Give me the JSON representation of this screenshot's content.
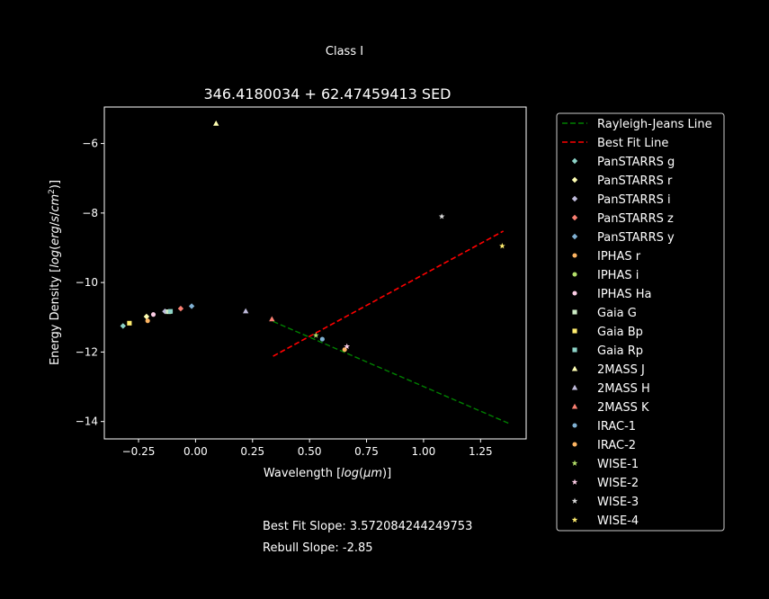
{
  "figure": {
    "suptitle": "Class I",
    "best_fit_text": "Best Fit Slope: 3.572084244249753",
    "rebull_text": "Rebull Slope: -2.85"
  },
  "chart_data": {
    "type": "scatter",
    "title": "346.4180034 + 62.47459413 SED",
    "xlabel": "Wavelength [log(μm)]",
    "ylabel": "Energy Density [log(erg/s/cm²)]",
    "xlim": [
      -0.4,
      1.45
    ],
    "ylim": [
      -14.5,
      -4.95
    ],
    "xticks": [
      -0.25,
      0.0,
      0.25,
      0.5,
      0.75,
      1.0,
      1.25
    ],
    "xtick_labels": [
      "−0.25",
      "0.00",
      "0.25",
      "0.50",
      "0.75",
      "1.00",
      "1.25"
    ],
    "yticks": [
      -6,
      -8,
      -10,
      -12,
      -14
    ],
    "ytick_labels": [
      "−6",
      "−8",
      "−10",
      "−12",
      "−14"
    ],
    "grid": false,
    "legend_position": "outside-right",
    "lines": [
      {
        "name": "Rayleigh-Jeans Line",
        "color": "#008000",
        "style": "dashed",
        "x": [
          0.34,
          1.38
        ],
        "y": [
          -11.12,
          -14.07
        ]
      },
      {
        "name": "Best Fit Line",
        "color": "#ff0000",
        "style": "dashed",
        "x": [
          0.34,
          1.35
        ],
        "y": [
          -12.12,
          -8.52
        ]
      }
    ],
    "series": [
      {
        "name": "PanSTARRS g",
        "marker": "diamond",
        "color": "#8dd3c7",
        "x": [
          -0.318
        ],
        "y": [
          -11.25
        ]
      },
      {
        "name": "PanSTARRS r",
        "marker": "diamond",
        "color": "#ffffb3",
        "x": [
          -0.215
        ],
        "y": [
          -10.98
        ]
      },
      {
        "name": "PanSTARRS i",
        "marker": "diamond",
        "color": "#bebada",
        "x": [
          -0.134
        ],
        "y": [
          -10.83
        ]
      },
      {
        "name": "PanSTARRS z",
        "marker": "diamond",
        "color": "#fb8072",
        "x": [
          -0.065
        ],
        "y": [
          -10.75
        ]
      },
      {
        "name": "PanSTARRS y",
        "marker": "diamond",
        "color": "#80b1d3",
        "x": [
          -0.017
        ],
        "y": [
          -10.68
        ]
      },
      {
        "name": "IPHAS r",
        "marker": "circle",
        "color": "#fdb462",
        "x": [
          -0.21
        ],
        "y": [
          -11.1
        ]
      },
      {
        "name": "IPHAS i",
        "marker": "circle",
        "color": "#b3de69",
        "x": [
          -0.11
        ],
        "y": [
          -10.84
        ]
      },
      {
        "name": "IPHAS Ha",
        "marker": "circle",
        "color": "#fccde5",
        "x": [
          -0.185
        ],
        "y": [
          -10.92
        ]
      },
      {
        "name": "Gaia G",
        "marker": "square",
        "color": "#ccebc5",
        "x": [
          -0.12
        ],
        "y": [
          -10.84
        ]
      },
      {
        "name": "Gaia Bp",
        "marker": "square",
        "color": "#ffed6f",
        "x": [
          -0.29
        ],
        "y": [
          -11.17
        ]
      },
      {
        "name": "Gaia Rp",
        "marker": "square",
        "color": "#8dd3c7",
        "x": [
          -0.11
        ],
        "y": [
          -10.83
        ]
      },
      {
        "name": "2MASS J",
        "marker": "triangle",
        "color": "#ffffb3",
        "x": [
          0.09
        ],
        "y": [
          -5.42
        ]
      },
      {
        "name": "2MASS H",
        "marker": "triangle",
        "color": "#bebada",
        "x": [
          0.22
        ],
        "y": [
          -10.82
        ]
      },
      {
        "name": "2MASS K",
        "marker": "triangle",
        "color": "#fb8072",
        "x": [
          0.335
        ],
        "y": [
          -11.05
        ]
      },
      {
        "name": "IRAC-1",
        "marker": "circle",
        "color": "#80b1d3",
        "x": [
          0.556
        ],
        "y": [
          -11.63
        ]
      },
      {
        "name": "IRAC-2",
        "marker": "circle",
        "color": "#fdb462",
        "x": [
          0.654
        ],
        "y": [
          -11.93
        ]
      },
      {
        "name": "WISE-1",
        "marker": "star",
        "color": "#b3de69",
        "x": [
          0.528
        ],
        "y": [
          -11.52
        ]
      },
      {
        "name": "WISE-2",
        "marker": "star",
        "color": "#fccde5",
        "x": [
          0.664
        ],
        "y": [
          -11.84
        ]
      },
      {
        "name": "WISE-3",
        "marker": "star",
        "color": "#d9d9d9",
        "x": [
          1.08
        ],
        "y": [
          -8.1
        ]
      },
      {
        "name": "WISE-4",
        "marker": "star",
        "color": "#ffed6f",
        "x": [
          1.345
        ],
        "y": [
          -8.95
        ]
      }
    ]
  }
}
